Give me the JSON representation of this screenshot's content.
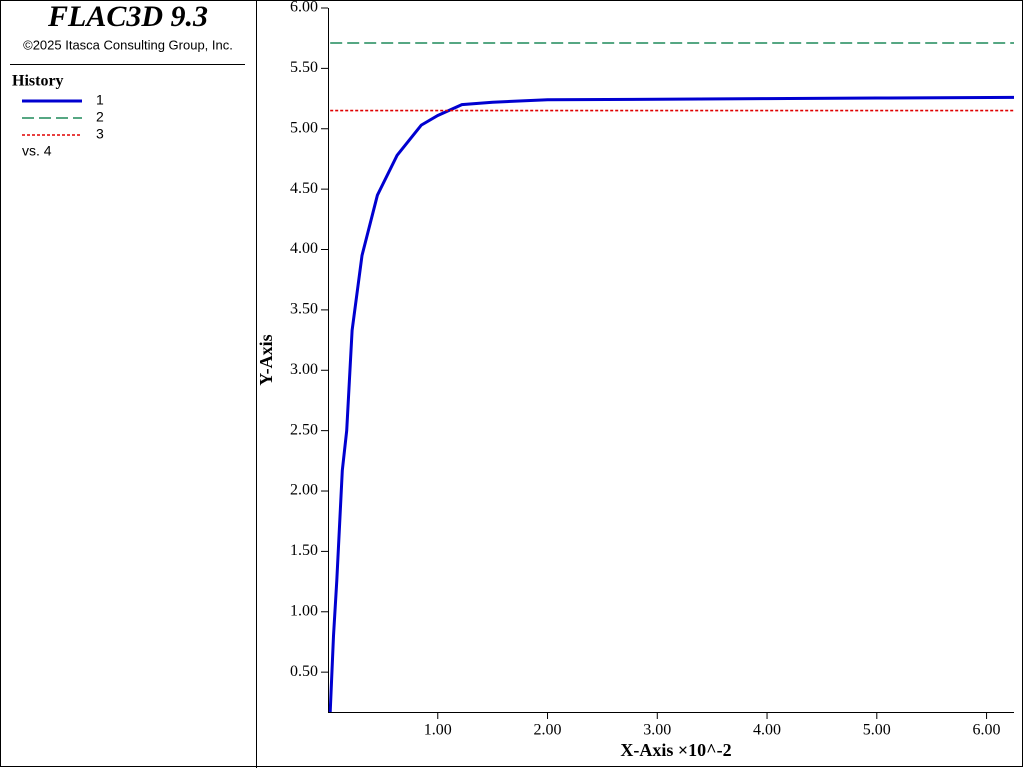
{
  "chart_data": {
    "type": "line",
    "title": "FLAC3D 9.3",
    "subtitle": "©2025 Itasca Consulting Group, Inc.",
    "legend_title": "History",
    "legend_note": "vs. 4",
    "x_label": "X-Axis ×10^-2",
    "y_label": "Y-Axis",
    "x": [
      0.02,
      0.05,
      0.08,
      0.13,
      0.17,
      0.22,
      0.31,
      0.45,
      0.63,
      0.85,
      1.0,
      1.22,
      1.5,
      2.0,
      3.0,
      4.0,
      5.0,
      6.25
    ],
    "series": [
      {
        "name": "1",
        "color": "#0000d0",
        "style": "solid",
        "values": [
          0.17,
          0.8,
          1.26,
          2.17,
          2.5,
          3.33,
          3.95,
          4.45,
          4.78,
          5.03,
          5.11,
          5.2,
          5.22,
          5.24,
          5.245,
          5.25,
          5.255,
          5.26
        ]
      },
      {
        "name": "2",
        "color": "#1f8a5a",
        "style": "dashed",
        "values": [
          5.71,
          5.71,
          5.71,
          5.71,
          5.71,
          5.71,
          5.71,
          5.71,
          5.71,
          5.71,
          5.71,
          5.71,
          5.71,
          5.71,
          5.71,
          5.71,
          5.71,
          5.71
        ]
      },
      {
        "name": "3",
        "color": "#e00000",
        "style": "dotted",
        "values": [
          5.15,
          5.15,
          5.15,
          5.15,
          5.15,
          5.15,
          5.15,
          5.15,
          5.15,
          5.15,
          5.15,
          5.15,
          5.15,
          5.15,
          5.15,
          5.15,
          5.15,
          5.15
        ]
      }
    ],
    "xlim": [
      0,
      6.25
    ],
    "ylim": [
      0.17,
      6.0
    ],
    "xticks": [
      {
        "value": 1,
        "label": "1.00"
      },
      {
        "value": 2,
        "label": "2.00"
      },
      {
        "value": 3,
        "label": "3.00"
      },
      {
        "value": 4,
        "label": "4.00"
      },
      {
        "value": 5,
        "label": "5.00"
      },
      {
        "value": 6,
        "label": "6.00"
      }
    ],
    "yticks": [
      {
        "value": 0.5,
        "label": "0.50"
      },
      {
        "value": 1,
        "label": "1.00"
      },
      {
        "value": 1.5,
        "label": "1.50"
      },
      {
        "value": 2,
        "label": "2.00"
      },
      {
        "value": 2.5,
        "label": "2.50"
      },
      {
        "value": 3,
        "label": "3.00"
      },
      {
        "value": 3.5,
        "label": "3.50"
      },
      {
        "value": 4,
        "label": "4.00"
      },
      {
        "value": 4.5,
        "label": "4.50"
      },
      {
        "value": 5,
        "label": "5.00"
      },
      {
        "value": 5.5,
        "label": "5.50"
      },
      {
        "value": 6,
        "label": "6.00"
      }
    ]
  }
}
